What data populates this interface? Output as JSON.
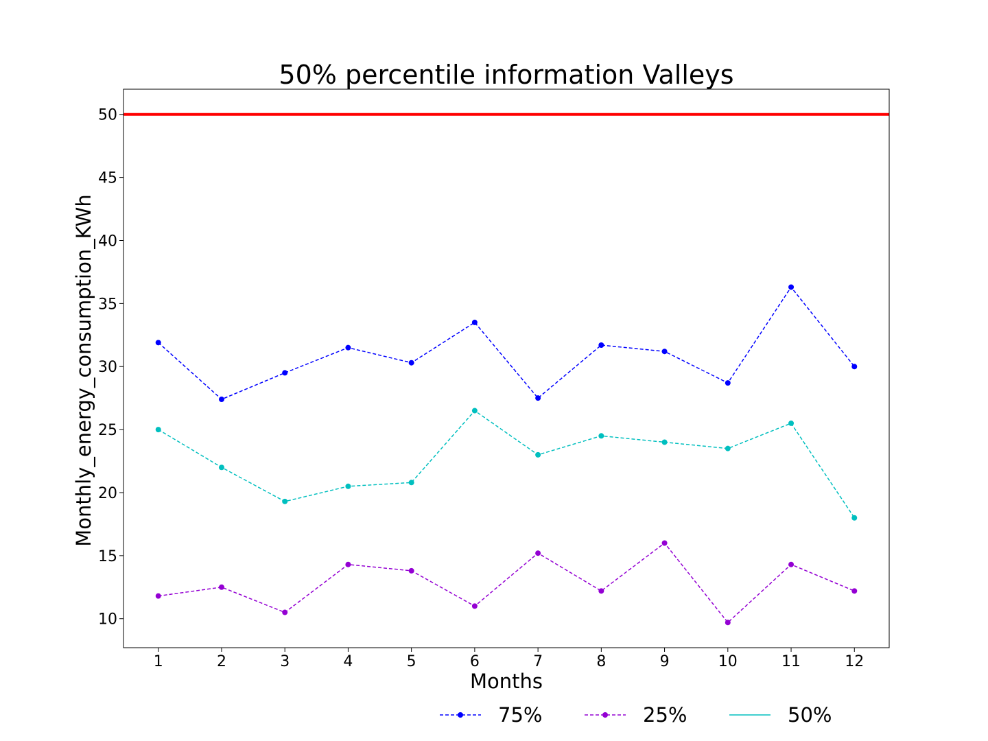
{
  "chart_data": {
    "type": "line",
    "title": "50% percentile information  Valleys",
    "xlabel": "Months",
    "ylabel": "Monthly_energy_consumption_KWh",
    "x": [
      1,
      2,
      3,
      4,
      5,
      6,
      7,
      8,
      9,
      10,
      11,
      12
    ],
    "xlim": [
      0.45,
      12.55
    ],
    "ylim": [
      7.7,
      52
    ],
    "yticks": [
      10,
      15,
      20,
      25,
      30,
      35,
      40,
      45,
      50
    ],
    "grid": false,
    "reference_line": {
      "y": 50,
      "color": "#ff0000"
    },
    "series": [
      {
        "name": "75%",
        "color": "#0000ff",
        "linestyle": "dashed",
        "marker": "circle",
        "values": [
          31.9,
          27.4,
          29.5,
          31.5,
          30.3,
          33.5,
          27.5,
          31.7,
          31.2,
          28.7,
          36.3,
          30.0
        ]
      },
      {
        "name": "25%",
        "color": "#9400d3",
        "linestyle": "dashed",
        "marker": "circle",
        "values": [
          11.8,
          12.5,
          10.5,
          14.3,
          13.8,
          11.0,
          15.2,
          12.2,
          16.0,
          9.7,
          14.3,
          12.2
        ]
      },
      {
        "name": "50%",
        "color": "#00bfbf",
        "linestyle": "dashed",
        "marker": "circle",
        "values": [
          25.0,
          22.0,
          19.3,
          20.5,
          20.8,
          26.5,
          23.0,
          24.5,
          24.0,
          23.5,
          25.5,
          18.0
        ]
      }
    ],
    "legend": [
      {
        "label": "75%",
        "color": "#0000ff",
        "style": "dashed-marker"
      },
      {
        "label": "25%",
        "color": "#9400d3",
        "style": "dashed-marker"
      },
      {
        "label": "50%",
        "color": "#00bfbf",
        "style": "solid"
      }
    ],
    "legend_position": "bottom-right"
  }
}
